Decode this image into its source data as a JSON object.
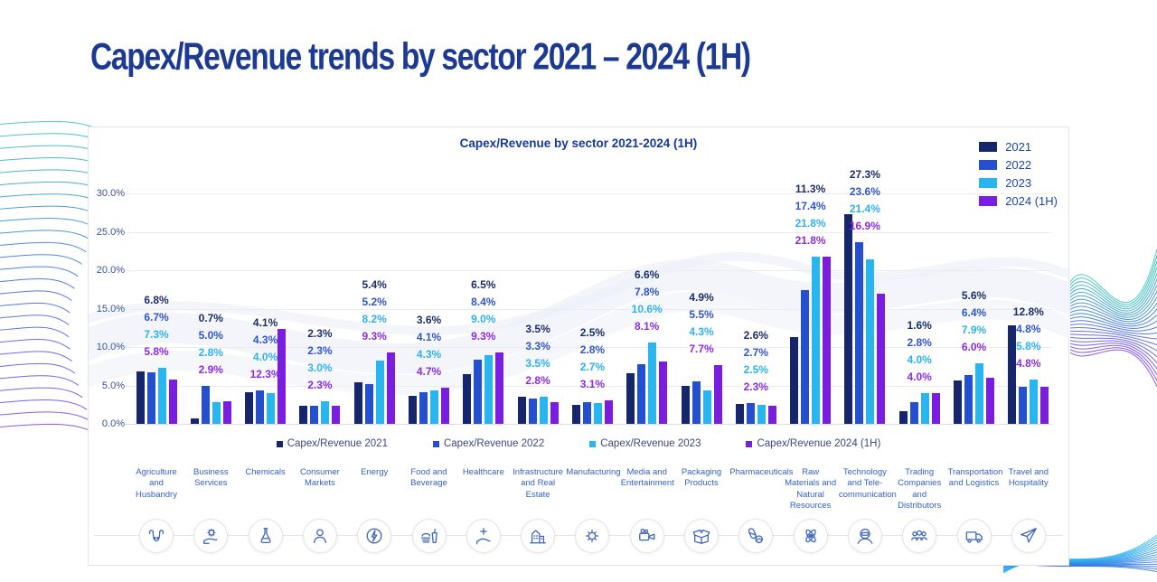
{
  "page": {
    "title": "Capex/Revenue trends by sector 2021 – 2024 (1H)"
  },
  "theme": {
    "title_color": "#1c3a92",
    "axis_text": "#34549c",
    "category_text": "#3560c6",
    "legend_text": "#1d47b0",
    "wave_teal": "#2ec4b4",
    "wave_blue": "#2e6be0",
    "wave_violet": "#7a3bf0",
    "wave_cyan": "#29b9f1"
  },
  "chart_data": {
    "type": "bar",
    "title": "Capex/Revenue by sector 2021-2024 (1H)",
    "xlabel": "",
    "ylabel": "",
    "ylim": [
      0,
      30
    ],
    "grid": true,
    "legend_position": "top-right",
    "yticks": [
      {
        "value": 0,
        "label": "0.0%"
      },
      {
        "value": 5,
        "label": "5.0%"
      },
      {
        "value": 10,
        "label": "10.0%"
      },
      {
        "value": 15,
        "label": "15.0%"
      },
      {
        "value": 20,
        "label": "20.0%"
      },
      {
        "value": 25,
        "label": "25.0%"
      },
      {
        "value": 30,
        "label": "30.0%"
      }
    ],
    "categories": [
      "Agriculture and Husbandry",
      "Business Services",
      "Chemicals",
      "Consumer Markets",
      "Energy",
      "Food and Beverage",
      "Healthcare",
      "Infrastructure and Real Estate",
      "Manufacturing",
      "Media and Entertainment",
      "Packaging Products",
      "Pharmaceuticals",
      "Raw Materials and Natural Resources",
      "Technology and Tele-communication",
      "Trading Companies and Distributors",
      "Transportation and Logistics",
      "Travel and Hospitality"
    ],
    "icons": [
      "bull-icon",
      "hand-gear-icon",
      "flask-icon",
      "person-icon",
      "lightning-icon",
      "food-drink-icon",
      "medical-cross-icon",
      "building-icon",
      "gear-icon",
      "video-camera-icon",
      "open-box-icon",
      "pills-icon",
      "atom-icon",
      "vr-headset-icon",
      "people-group-icon",
      "truck-icon",
      "airplane-icon"
    ],
    "series": [
      {
        "name": "2021",
        "legend_label": "Capex/Revenue 2021",
        "color": "#15266d",
        "label_color": "#1b2e6b",
        "values": [
          6.8,
          0.7,
          4.1,
          2.3,
          5.4,
          3.6,
          6.5,
          3.5,
          2.5,
          6.6,
          4.9,
          2.6,
          11.3,
          27.3,
          1.6,
          5.6,
          12.8
        ]
      },
      {
        "name": "2022",
        "legend_label": "Capex/Revenue 2022",
        "color": "#2450d0",
        "label_color": "#2f55cc",
        "values": [
          6.7,
          5.0,
          4.3,
          2.3,
          5.2,
          4.1,
          8.4,
          3.3,
          2.8,
          7.8,
          5.5,
          2.7,
          17.4,
          23.6,
          2.8,
          6.4,
          4.8
        ]
      },
      {
        "name": "2023",
        "legend_label": "Capex/Revenue 2023",
        "color": "#27b6ef",
        "label_color": "#2eb2ee",
        "values": [
          7.3,
          2.8,
          4.0,
          3.0,
          8.2,
          4.3,
          9.0,
          3.5,
          2.7,
          10.6,
          4.3,
          2.5,
          21.8,
          21.4,
          4.0,
          7.9,
          5.8
        ]
      },
      {
        "name": "2024 (1H)",
        "legend_label": "Capex/Revenue 2024 (1H)",
        "color": "#7b1ce1",
        "label_color": "#8e2be2",
        "values": [
          5.8,
          2.9,
          12.3,
          2.3,
          9.3,
          4.7,
          9.3,
          2.8,
          3.1,
          8.1,
          7.7,
          2.3,
          21.8,
          16.9,
          4.0,
          6.0,
          4.8
        ]
      }
    ]
  }
}
